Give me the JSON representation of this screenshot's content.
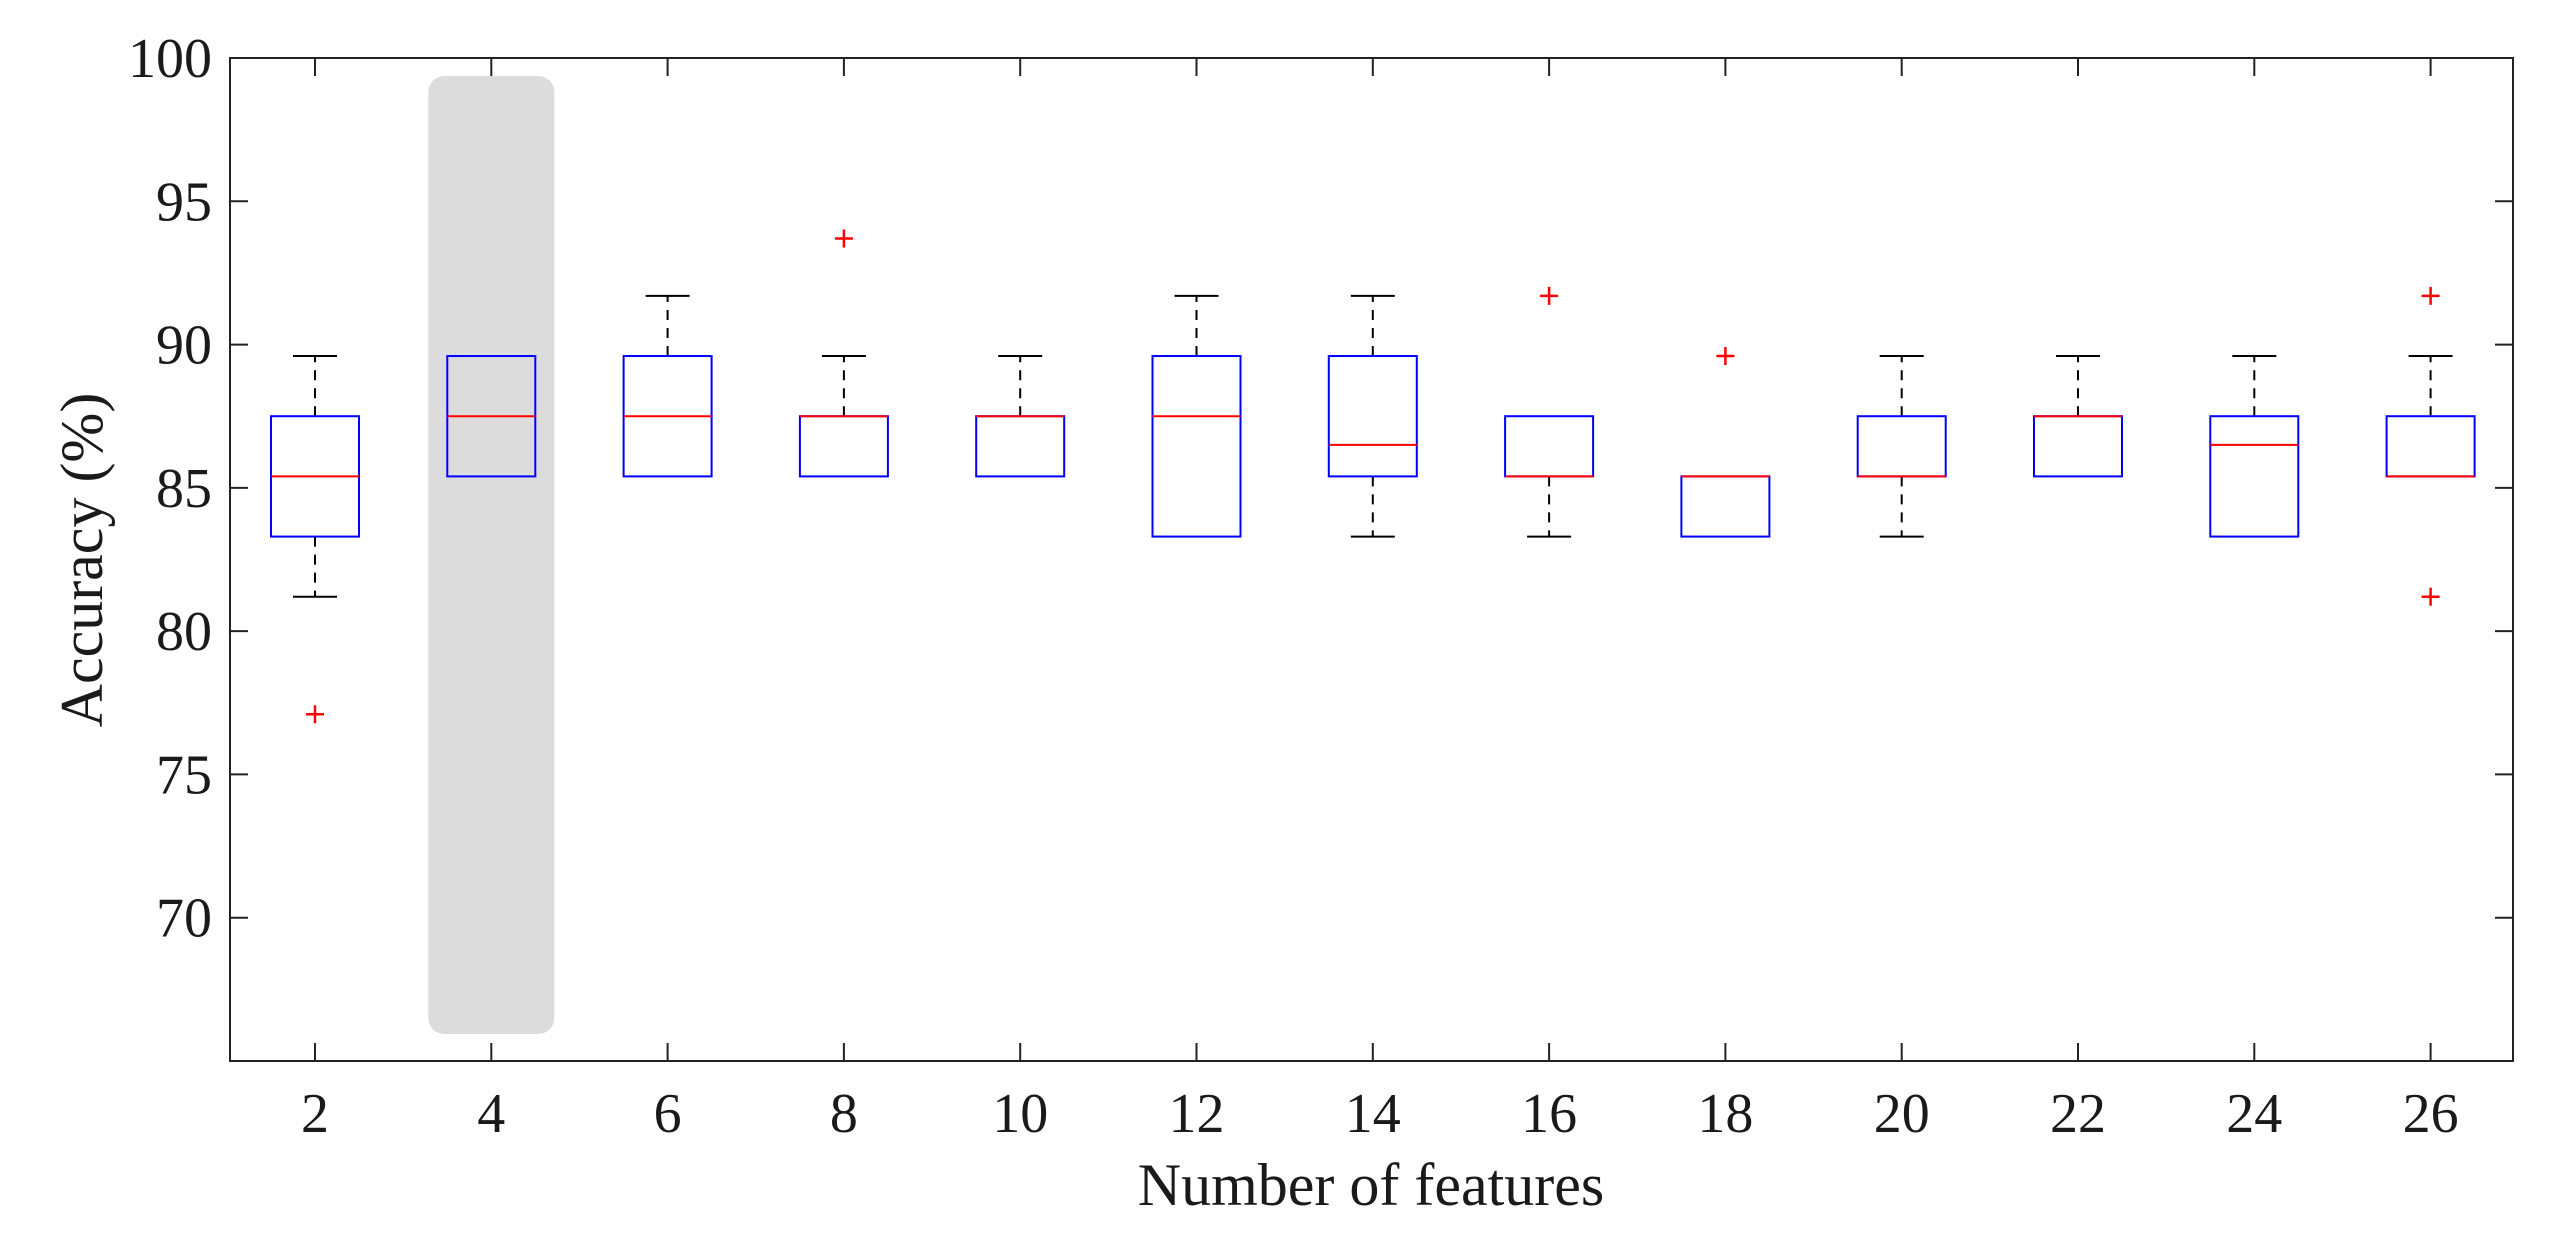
{
  "chart_data": {
    "type": "box",
    "xlabel": "Number of features",
    "ylabel": "Accuracy (%)",
    "ylim": [
      65,
      100
    ],
    "yticks": [
      70,
      75,
      80,
      85,
      90,
      95,
      100
    ],
    "grid": false,
    "highlighted_category": "4",
    "colors": {
      "box": "#0000ff",
      "median": "#ff0000",
      "whisker": "#000000",
      "outlier": "#ff0000",
      "highlight": "#dcdcdc"
    },
    "categories": [
      "2",
      "4",
      "6",
      "8",
      "10",
      "12",
      "14",
      "16",
      "18",
      "20",
      "22",
      "24",
      "26"
    ],
    "boxes": [
      {
        "q1": 83.3,
        "median": 85.4,
        "q3": 87.5,
        "whislo": 81.2,
        "whishi": 89.6,
        "outliers": [
          77.1
        ]
      },
      {
        "q1": 85.4,
        "median": 87.5,
        "q3": 89.6,
        "whislo": 85.4,
        "whishi": 89.6,
        "outliers": []
      },
      {
        "q1": 85.4,
        "median": 87.5,
        "q3": 89.6,
        "whislo": 85.4,
        "whishi": 91.7,
        "outliers": []
      },
      {
        "q1": 85.4,
        "median": 87.5,
        "q3": 87.5,
        "whislo": 85.4,
        "whishi": 89.6,
        "outliers": [
          93.7
        ]
      },
      {
        "q1": 85.4,
        "median": 87.5,
        "q3": 87.5,
        "whislo": 85.4,
        "whishi": 89.6,
        "outliers": []
      },
      {
        "q1": 83.3,
        "median": 87.5,
        "q3": 89.6,
        "whislo": 83.3,
        "whishi": 91.7,
        "outliers": []
      },
      {
        "q1": 85.4,
        "median": 86.5,
        "q3": 89.6,
        "whislo": 83.3,
        "whishi": 91.7,
        "outliers": []
      },
      {
        "q1": 85.4,
        "median": 85.4,
        "q3": 87.5,
        "whislo": 83.3,
        "whishi": 87.5,
        "outliers": [
          91.7
        ]
      },
      {
        "q1": 83.3,
        "median": 85.4,
        "q3": 85.4,
        "whislo": 83.3,
        "whishi": 85.4,
        "outliers": [
          89.6
        ]
      },
      {
        "q1": 85.4,
        "median": 85.4,
        "q3": 87.5,
        "whislo": 83.3,
        "whishi": 89.6,
        "outliers": []
      },
      {
        "q1": 85.4,
        "median": 87.5,
        "q3": 87.5,
        "whislo": 85.4,
        "whishi": 89.6,
        "outliers": []
      },
      {
        "q1": 83.3,
        "median": 86.5,
        "q3": 87.5,
        "whislo": 83.3,
        "whishi": 89.6,
        "outliers": []
      },
      {
        "q1": 85.4,
        "median": 85.4,
        "q3": 87.5,
        "whislo": 85.4,
        "whishi": 89.6,
        "outliers": [
          91.7,
          81.2
        ]
      }
    ]
  }
}
